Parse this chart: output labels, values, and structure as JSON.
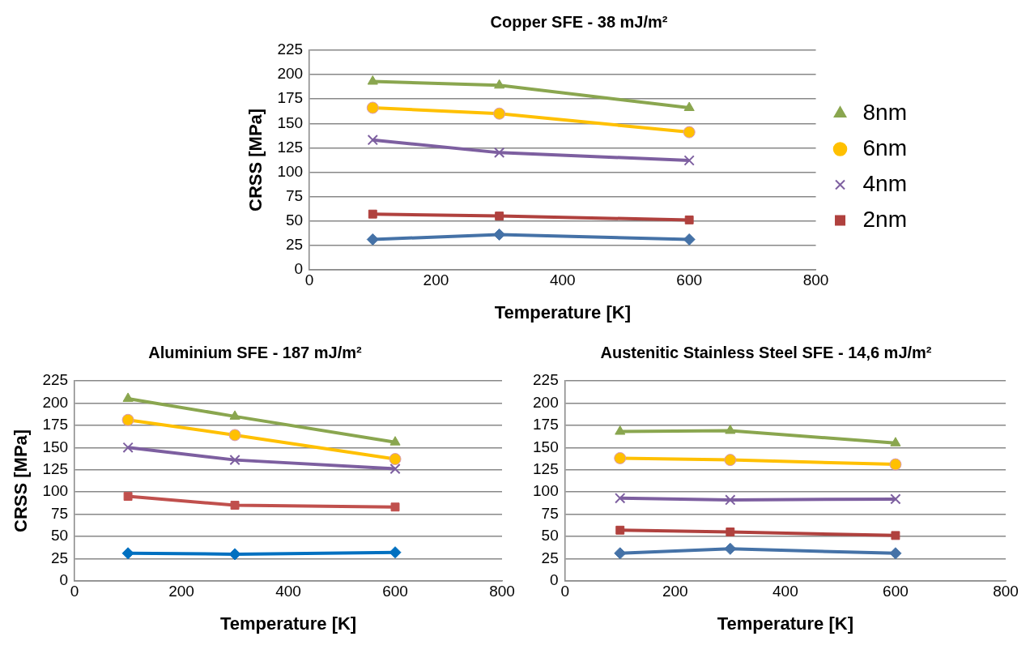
{
  "chart_data": [
    {
      "type": "line",
      "title": "Copper SFE - 38 mJ/m²",
      "xlabel": "Temperature [K]",
      "ylabel": "CRSS [MPa]",
      "x": [
        100,
        300,
        600
      ],
      "xlim": [
        0,
        800
      ],
      "xticks": [
        0,
        200,
        400,
        600,
        800
      ],
      "ylim": [
        0,
        225
      ],
      "yticks": [
        0,
        25,
        50,
        75,
        100,
        125,
        150,
        175,
        200,
        225
      ],
      "grid": "y",
      "legend": "right",
      "series": [
        {
          "name": "8nm",
          "color": "#8aa64f",
          "marker": "triangle",
          "values": [
            193,
            189,
            166
          ]
        },
        {
          "name": "6nm",
          "color": "#ffc000",
          "marker": "circle",
          "values": [
            166,
            160,
            141
          ]
        },
        {
          "name": "4nm",
          "color": "#7d5fa0",
          "marker": "cross",
          "values": [
            133,
            120,
            112
          ]
        },
        {
          "name": "2nm",
          "color": "#b0413e",
          "marker": "square",
          "values": [
            57,
            55,
            51
          ]
        },
        {
          "color": "#4572a7",
          "marker": "diamond",
          "values": [
            31,
            36,
            31
          ]
        }
      ]
    },
    {
      "type": "line",
      "title": "Aluminium SFE - 187 mJ/m²",
      "xlabel": "Temperature [K]",
      "ylabel": "CRSS [MPa]",
      "x": [
        100,
        300,
        600
      ],
      "xlim": [
        0,
        800
      ],
      "xticks": [
        0,
        200,
        400,
        600,
        800
      ],
      "ylim": [
        0,
        225
      ],
      "yticks": [
        0,
        25,
        50,
        75,
        100,
        125,
        150,
        175,
        200,
        225
      ],
      "grid": "y",
      "series": [
        {
          "color": "#8aa64f",
          "marker": "triangle",
          "values": [
            205,
            185,
            156
          ]
        },
        {
          "color": "#ffc000",
          "marker": "circle",
          "values": [
            181,
            164,
            137
          ]
        },
        {
          "color": "#7d5fa0",
          "marker": "cross",
          "values": [
            150,
            136,
            126
          ]
        },
        {
          "color": "#c0504d",
          "marker": "square",
          "values": [
            95,
            85,
            83
          ]
        },
        {
          "color": "#0070c0",
          "marker": "diamond",
          "values": [
            31,
            30,
            32
          ]
        }
      ]
    },
    {
      "type": "line",
      "title": "Austenitic Stainless Steel SFE - 14,6 mJ/m²",
      "xlabel": "Temperature [K]",
      "x": [
        100,
        300,
        600
      ],
      "xlim": [
        0,
        800
      ],
      "xticks": [
        0,
        200,
        400,
        600,
        800
      ],
      "ylim": [
        0,
        225
      ],
      "yticks": [
        0,
        25,
        50,
        75,
        100,
        125,
        150,
        175,
        200,
        225
      ],
      "grid": "y",
      "series": [
        {
          "color": "#8aa64f",
          "marker": "triangle",
          "values": [
            168,
            169,
            155
          ]
        },
        {
          "color": "#ffc000",
          "marker": "circle",
          "values": [
            138,
            136,
            131
          ]
        },
        {
          "color": "#7d5fa0",
          "marker": "cross",
          "values": [
            93,
            91,
            92
          ]
        },
        {
          "color": "#b0413e",
          "marker": "square",
          "values": [
            57,
            55,
            51
          ]
        },
        {
          "color": "#4572a7",
          "marker": "diamond",
          "values": [
            31,
            36,
            31
          ]
        }
      ]
    }
  ]
}
